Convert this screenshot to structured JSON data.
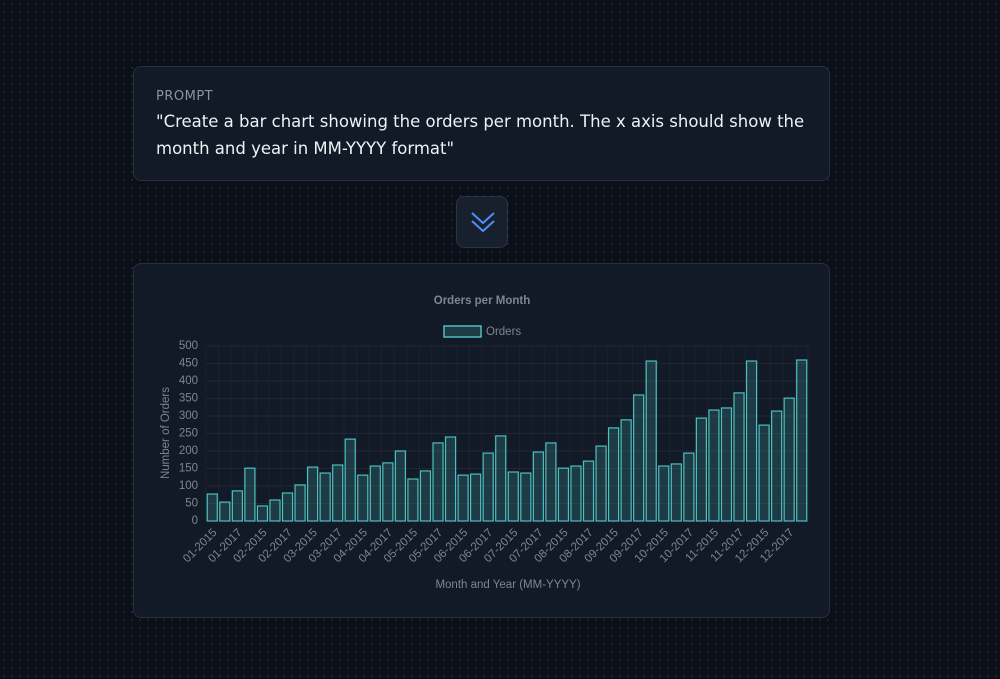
{
  "prompt": {
    "label": "PROMPT",
    "text": "\"Create a bar chart showing the orders per month. The x axis should show the month and year in MM-YYYY format\""
  },
  "chart_data": {
    "type": "bar",
    "title": "Orders per Month",
    "x_label": "Month and Year (MM-YYYY)",
    "y_label": "Number of Orders",
    "categories": [
      "01-2015",
      null,
      "01-2017",
      null,
      "02-2015",
      null,
      "02-2017",
      null,
      "03-2015",
      null,
      "03-2017",
      null,
      "04-2015",
      null,
      "04-2017",
      null,
      "05-2015",
      null,
      "05-2017",
      null,
      "06-2015",
      null,
      "06-2017",
      null,
      "07-2015",
      null,
      "07-2017",
      null,
      "08-2015",
      null,
      "08-2017",
      null,
      "09-2015",
      null,
      "09-2017",
      null,
      "10-2015",
      null,
      "10-2017",
      null,
      "11-2015",
      null,
      "11-2017",
      null,
      "12-2015",
      null,
      "12-2017",
      null
    ],
    "series": [
      {
        "name": "Orders",
        "color": "#4bc0c0",
        "values": [
          77,
          54,
          86,
          151,
          43,
          60,
          80,
          103,
          154,
          137,
          160,
          234,
          131,
          157,
          166,
          200,
          120,
          143,
          223,
          240,
          131,
          134,
          194,
          243,
          140,
          137,
          197,
          223,
          151,
          157,
          171,
          214,
          266,
          289,
          360,
          457,
          157,
          163,
          194,
          294,
          317,
          323,
          366,
          457,
          274,
          314,
          351,
          460
        ]
      }
    ],
    "ylim": [
      0,
      500
    ],
    "yticks": [
      0,
      50,
      100,
      150,
      200,
      250,
      300,
      350,
      400,
      450,
      500
    ],
    "grid": true,
    "legend": "top"
  }
}
